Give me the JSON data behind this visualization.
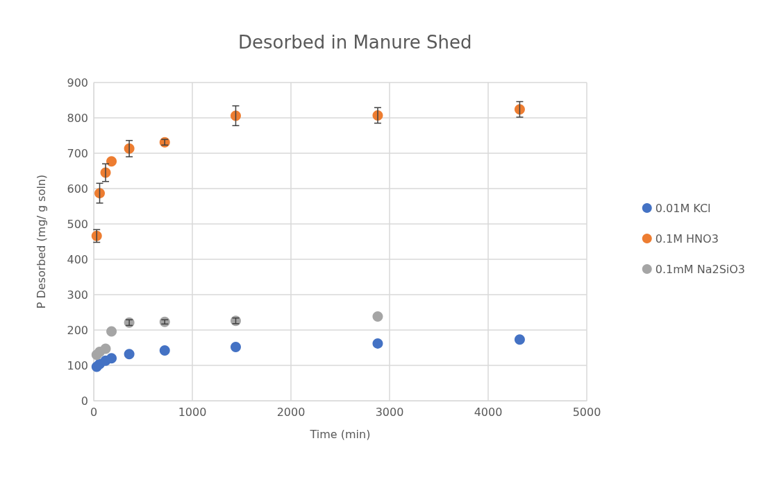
{
  "chart_data": {
    "type": "scatter",
    "title": "Desorbed in Manure Shed",
    "xlabel": "Time (min)",
    "ylabel": "P Desorbed (mg/ g soln)",
    "x": [
      30,
      60,
      120,
      180,
      360,
      720,
      1440,
      2880,
      4320
    ],
    "series": [
      {
        "name": "0.01M KCl",
        "color": "#4472c4",
        "values": [
          96,
          104,
          113,
          120,
          132,
          142,
          152,
          162,
          173
        ]
      },
      {
        "name": "0.1M HNO3",
        "color": "#ed7d31",
        "values": [
          466,
          587,
          645,
          677,
          713,
          731,
          806,
          807,
          824
        ],
        "errors": [
          18,
          28,
          25,
          null,
          23,
          8,
          28,
          22,
          22
        ]
      },
      {
        "name": "0.1mM Na2SiO3",
        "color": "#a5a5a5",
        "values": [
          130,
          138,
          147,
          196,
          221,
          223,
          226,
          238,
          null
        ],
        "errors": [
          null,
          null,
          null,
          null,
          8,
          6,
          8,
          null,
          null
        ]
      }
    ],
    "xlim": [
      0,
      5000
    ],
    "xticks": [
      0,
      1000,
      2000,
      3000,
      4000,
      5000
    ],
    "ylim": [
      0,
      900
    ],
    "yticks": [
      0,
      100,
      200,
      300,
      400,
      500,
      600,
      700,
      800,
      900
    ],
    "grid": true,
    "legend": "right",
    "marker": "circle"
  }
}
